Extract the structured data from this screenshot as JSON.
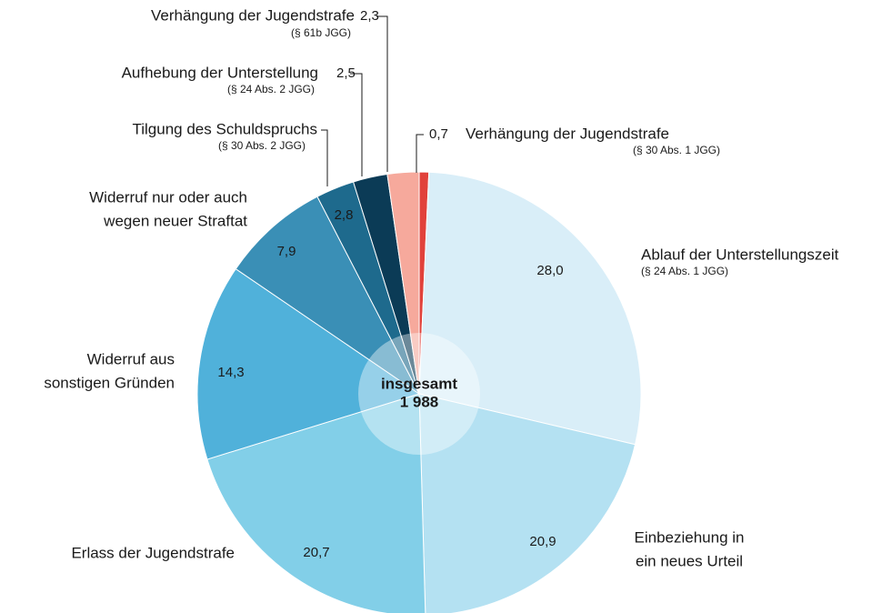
{
  "chart_data": {
    "type": "pie",
    "categories": [
      [
        "Verhängung der Jugendstrafe"
      ],
      [
        "Ablauf der Unterstellungszeit"
      ],
      [
        "Einbeziehung in",
        "ein neues Urteil"
      ],
      [
        "Erlass der Jugendstrafe"
      ],
      [
        "Widerruf aus",
        "sonstigen Gründen"
      ],
      [
        "Widerruf nur oder auch",
        "wegen neuer Straftat"
      ],
      [
        "Tilgung des Schuldspruchs"
      ],
      [
        "Aufhebung der Unterstellung"
      ],
      [
        "Verhängung der Jugendstrafe"
      ]
    ],
    "notes": [
      "(§ 30 Abs. 1 JGG)",
      "(§ 24 Abs. 1 JGG)",
      null,
      null,
      null,
      null,
      "(§ 30 Abs. 2 JGG)",
      "(§ 24 Abs. 2 JGG)",
      "(§ 61b JGG)"
    ],
    "values": [
      0.7,
      28.0,
      20.9,
      20.7,
      14.3,
      7.9,
      2.8,
      2.5,
      2.3
    ],
    "value_labels": [
      "0,7",
      "28,0",
      "20,9",
      "20,7",
      "14,3",
      "7,9",
      "2,8",
      "2,5",
      "2,3"
    ],
    "colors": [
      "#e1423b",
      "#d9eef8",
      "#b4e1f2",
      "#82cfe8",
      "#50b1da",
      "#3a8fb6",
      "#1e6a8d",
      "#0b3b56",
      "#f6a99c"
    ],
    "center_label": [
      "insgesamt",
      "1 988"
    ]
  }
}
